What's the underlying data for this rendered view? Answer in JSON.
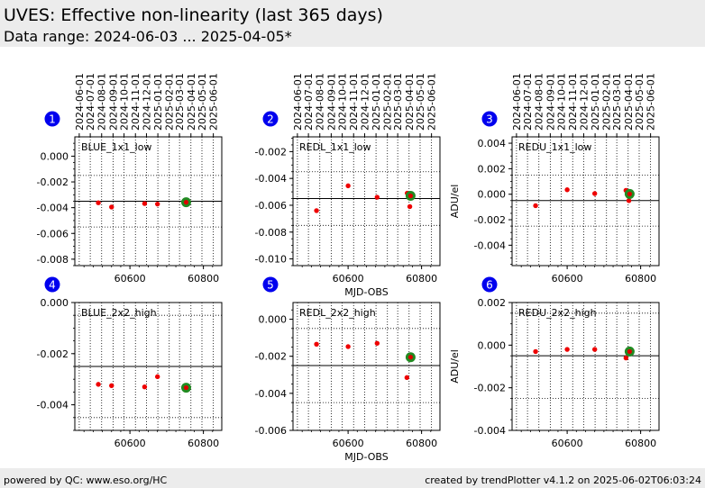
{
  "header": {
    "title": "UVES: Effective non-linearity (last 365 days)",
    "subtitle": "Data range: 2024-06-03 ... 2025-04-05*"
  },
  "footer": {
    "left": "powered by QC: www.eso.org/HC",
    "right": "created by trendPlotter v4.1.2 on 2025-06-02T06:03:24"
  },
  "colors": {
    "badge": "#0000ee",
    "point": "#ee0000",
    "latest_outer": "#228b22",
    "latest_inner": "#dd0000"
  },
  "chart_data": [
    {
      "type": "scatter",
      "number": "1",
      "label": "BLUE_1x1_low",
      "xlim": [
        60450,
        60850
      ],
      "ylim": [
        -0.0085,
        0.0015
      ],
      "yticks": [
        "0.000",
        "-0.002",
        "-0.004",
        "-0.006",
        "-0.008"
      ],
      "ytick_values": [
        0,
        -0.002,
        -0.004,
        -0.006,
        -0.008
      ],
      "xticks": [
        "60600",
        "60800"
      ],
      "xtick_values": [
        60600,
        60800
      ],
      "ylabel": "",
      "xlabel": "",
      "ref_line": -0.0035,
      "band": [
        -0.0015,
        -0.0055
      ],
      "points": [
        [
          60514,
          -0.00362
        ],
        [
          60550,
          -0.00395
        ],
        [
          60640,
          -0.00368
        ],
        [
          60675,
          -0.00372
        ],
        [
          60753,
          -0.00358
        ]
      ],
      "latest": [
        60753,
        -0.00358
      ]
    },
    {
      "type": "scatter",
      "number": "2",
      "label": "REDL_1x1_low",
      "xlim": [
        60450,
        60850
      ],
      "ylim": [
        -0.0105,
        -0.0009
      ],
      "yticks": [
        "-0.002",
        "-0.004",
        "-0.006",
        "-0.008",
        "-0.010"
      ],
      "ytick_values": [
        -0.002,
        -0.004,
        -0.006,
        -0.008,
        -0.01
      ],
      "xticks": [
        "60600",
        "60800"
      ],
      "xtick_values": [
        60600,
        60800
      ],
      "ylabel": "",
      "xlabel": "MJD-OBS",
      "ref_line": -0.0055,
      "band": [
        -0.0035,
        -0.0075
      ],
      "points": [
        [
          60514,
          -0.0064
        ],
        [
          60600,
          -0.00455
        ],
        [
          60679,
          -0.0054
        ],
        [
          60761,
          -0.0051
        ],
        [
          60768,
          -0.0061
        ],
        [
          60770,
          -0.0053
        ]
      ],
      "latest": [
        60770,
        -0.0053
      ]
    },
    {
      "type": "scatter",
      "number": "3",
      "label": "REDU_1x1_low",
      "xlim": [
        60450,
        60850
      ],
      "ylim": [
        -0.0056,
        0.0045
      ],
      "yticks": [
        "0.004",
        "0.002",
        "0.000",
        "-0.002",
        "-0.004"
      ],
      "ytick_values": [
        0.004,
        0.002,
        0,
        -0.002,
        -0.004
      ],
      "xticks": [
        "60600",
        "60800"
      ],
      "xtick_values": [
        60600,
        60800
      ],
      "ylabel": "ADU/el",
      "xlabel": "",
      "ref_line": -0.0005,
      "band": [
        0.0015,
        -0.0025
      ],
      "points": [
        [
          60514,
          -0.0009
        ],
        [
          60600,
          0.00035
        ],
        [
          60675,
          5e-05
        ],
        [
          60760,
          0.0003
        ],
        [
          60768,
          -0.0005
        ],
        [
          60770,
          2e-05
        ]
      ],
      "latest": [
        60770,
        2e-05
      ]
    },
    {
      "type": "scatter",
      "number": "4",
      "label": "BLUE_2x2_high",
      "xlim": [
        60450,
        60850
      ],
      "ylim": [
        -0.005,
        0.0
      ],
      "yticks": [
        "0.000",
        "-0.002",
        "-0.004"
      ],
      "ytick_values": [
        0,
        -0.002,
        -0.004
      ],
      "xticks": [
        "60600",
        "60800"
      ],
      "xtick_values": [
        60600,
        60800
      ],
      "ylabel": "",
      "xlabel": "",
      "ref_line": -0.0025,
      "band": [
        -0.0005,
        -0.0045
      ],
      "points": [
        [
          60514,
          -0.0032
        ],
        [
          60550,
          -0.00325
        ],
        [
          60640,
          -0.0033
        ],
        [
          60675,
          -0.0029
        ],
        [
          60753,
          -0.00333
        ]
      ],
      "latest": [
        60753,
        -0.00333
      ]
    },
    {
      "type": "scatter",
      "number": "5",
      "label": "REDL_2x2_high",
      "xlim": [
        60450,
        60850
      ],
      "ylim": [
        -0.006,
        0.0009
      ],
      "yticks": [
        "0.000",
        "-0.002",
        "-0.004",
        "-0.006"
      ],
      "ytick_values": [
        0,
        -0.002,
        -0.004,
        -0.006
      ],
      "xticks": [
        "60600",
        "60800"
      ],
      "xtick_values": [
        60600,
        60800
      ],
      "ylabel": "",
      "xlabel": "MJD-OBS",
      "ref_line": -0.0025,
      "band": [
        -0.0005,
        -0.0045
      ],
      "points": [
        [
          60514,
          -0.00135
        ],
        [
          60600,
          -0.00148
        ],
        [
          60679,
          -0.0013
        ],
        [
          60760,
          -0.00315
        ],
        [
          60770,
          -0.00205
        ]
      ],
      "latest": [
        60770,
        -0.00205
      ]
    },
    {
      "type": "scatter",
      "number": "6",
      "label": "REDU_2x2_high",
      "xlim": [
        60450,
        60850
      ],
      "ylim": [
        -0.004,
        0.002
      ],
      "yticks": [
        "0.002",
        "0.000",
        "-0.002",
        "-0.004"
      ],
      "ytick_values": [
        0.002,
        0,
        -0.002,
        -0.004
      ],
      "xticks": [
        "60600",
        "60800"
      ],
      "xtick_values": [
        60600,
        60800
      ],
      "ylabel": "ADU/el",
      "xlabel": "",
      "ref_line": -0.0005,
      "band": [
        0.0015,
        -0.0025
      ],
      "points": [
        [
          60514,
          -0.0003
        ],
        [
          60600,
          -0.0002
        ],
        [
          60675,
          -0.0002
        ],
        [
          60760,
          -0.0006
        ],
        [
          60770,
          -0.0003
        ]
      ],
      "latest": [
        60770,
        -0.0003
      ]
    }
  ],
  "date_axis": {
    "labels": [
      "2024-06-01",
      "2024-07-01",
      "2024-08-01",
      "2024-09-01",
      "2024-10-01",
      "2024-11-01",
      "2024-12-01",
      "2025-01-01",
      "2025-02-01",
      "2025-03-01",
      "2025-04-01",
      "2025-05-01",
      "2025-06-01"
    ],
    "mjd": [
      60462,
      60492,
      60523,
      60554,
      60584,
      60615,
      60645,
      60676,
      60707,
      60735,
      60766,
      60796,
      60827
    ]
  }
}
